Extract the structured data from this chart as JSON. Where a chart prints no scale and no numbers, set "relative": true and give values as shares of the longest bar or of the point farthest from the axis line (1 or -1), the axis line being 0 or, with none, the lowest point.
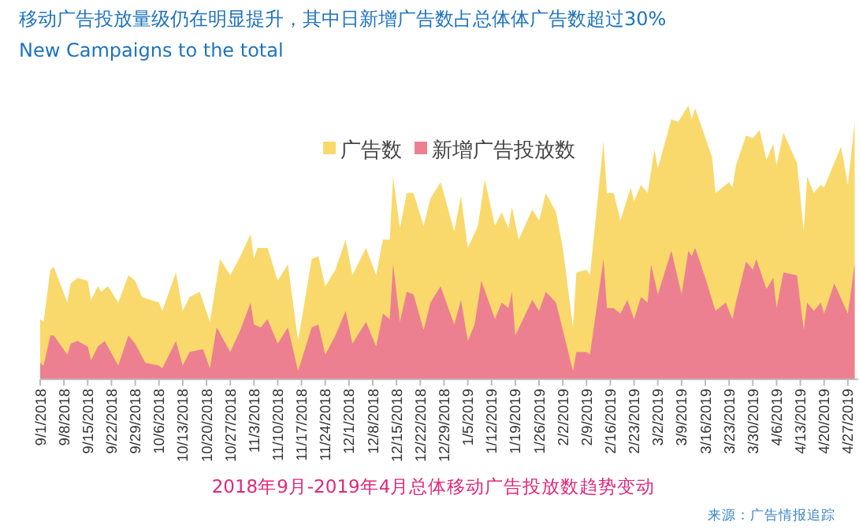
{
  "chart_data": {
    "type": "area",
    "title": "移动广告投放量级仍在明显提升，其中日新增广告数占总体体广告数超过30%",
    "subtitle": "New Campaigns to the total",
    "xlabel": "2018年9月-2019年4月总体移动广告投放数趋势变动",
    "annotations": [
      "来源：广告情报追踪"
    ],
    "relative": true,
    "legend": "top",
    "grid": false,
    "xlim": [
      "2018-09-01",
      "2019-04-30"
    ],
    "xticks": [
      {
        "value": "2018-09-01",
        "label": "9/1/2018"
      },
      {
        "value": "2018-09-08",
        "label": "9/8/2018"
      },
      {
        "value": "2018-09-15",
        "label": "9/15/2018"
      },
      {
        "value": "2018-09-22",
        "label": "9/22/2018"
      },
      {
        "value": "2018-09-29",
        "label": "9/29/2018"
      },
      {
        "value": "2018-10-06",
        "label": "10/6/2018"
      },
      {
        "value": "2018-10-13",
        "label": "10/13/2018"
      },
      {
        "value": "2018-10-20",
        "label": "10/20/2018"
      },
      {
        "value": "2018-10-27",
        "label": "10/27/2018"
      },
      {
        "value": "2018-11-03",
        "label": "11/3/2018"
      },
      {
        "value": "2018-11-10",
        "label": "11/10/2018"
      },
      {
        "value": "2018-11-17",
        "label": "11/17/2018"
      },
      {
        "value": "2018-11-24",
        "label": "11/24/2018"
      },
      {
        "value": "2018-12-01",
        "label": "12/1/2018"
      },
      {
        "value": "2018-12-08",
        "label": "12/8/2018"
      },
      {
        "value": "2018-12-15",
        "label": "12/15/2018"
      },
      {
        "value": "2018-12-22",
        "label": "12/22/2018"
      },
      {
        "value": "2018-12-29",
        "label": "12/29/2018"
      },
      {
        "value": "2019-01-05",
        "label": "1/5/2019"
      },
      {
        "value": "2019-01-12",
        "label": "1/12/2019"
      },
      {
        "value": "2019-01-19",
        "label": "1/19/2019"
      },
      {
        "value": "2019-01-26",
        "label": "1/26/2019"
      },
      {
        "value": "2019-02-02",
        "label": "2/2/2019"
      },
      {
        "value": "2019-02-09",
        "label": "2/9/2019"
      },
      {
        "value": "2019-02-16",
        "label": "2/16/2019"
      },
      {
        "value": "2019-02-23",
        "label": "2/23/2019"
      },
      {
        "value": "2019-03-02",
        "label": "3/2/2019"
      },
      {
        "value": "2019-03-09",
        "label": "3/9/2019"
      },
      {
        "value": "2019-03-16",
        "label": "3/16/2019"
      },
      {
        "value": "2019-03-23",
        "label": "3/23/2019"
      },
      {
        "value": "2019-03-30",
        "label": "3/30/2019"
      },
      {
        "value": "2019-04-06",
        "label": "4/6/2019"
      },
      {
        "value": "2019-04-13",
        "label": "4/13/2019"
      },
      {
        "value": "2019-04-20",
        "label": "4/20/2019"
      },
      {
        "value": "2019-04-27",
        "label": "4/27/2019"
      }
    ],
    "series": [
      {
        "name": "广告数",
        "color": "#f9d96b",
        "x": [
          "2018-09-01",
          "2018-09-02",
          "2018-09-04",
          "2018-09-05",
          "2018-09-09",
          "2018-09-10",
          "2018-09-12",
          "2018-09-15",
          "2018-09-16",
          "2018-09-18",
          "2018-09-19",
          "2018-09-21",
          "2018-09-24",
          "2018-09-27",
          "2018-09-29",
          "2018-10-01",
          "2018-10-06",
          "2018-10-07",
          "2018-10-11",
          "2018-10-13",
          "2018-10-15",
          "2018-10-18",
          "2018-10-21",
          "2018-10-24",
          "2018-10-27",
          "2018-10-30",
          "2018-11-02",
          "2018-11-03",
          "2018-11-04",
          "2018-11-07",
          "2018-11-10",
          "2018-11-13",
          "2018-11-16",
          "2018-11-20",
          "2018-11-22",
          "2018-11-24",
          "2018-11-27",
          "2018-11-30",
          "2018-12-02",
          "2018-12-06",
          "2018-12-09",
          "2018-12-11",
          "2018-12-13",
          "2018-12-14",
          "2018-12-16",
          "2018-12-18",
          "2018-12-20",
          "2018-12-23",
          "2018-12-25",
          "2018-12-28",
          "2019-01-01",
          "2019-01-03",
          "2019-01-05",
          "2019-01-08",
          "2019-01-10",
          "2019-01-13",
          "2019-01-15",
          "2019-01-17",
          "2019-01-18",
          "2019-01-20",
          "2019-01-24",
          "2019-01-26",
          "2019-01-28",
          "2019-01-31",
          "2019-02-02",
          "2019-02-05",
          "2019-02-06",
          "2019-02-09",
          "2019-02-10",
          "2019-02-14",
          "2019-02-15",
          "2019-02-17",
          "2019-02-19",
          "2019-02-22",
          "2019-02-23",
          "2019-02-25",
          "2019-02-27",
          "2019-03-01",
          "2019-03-02",
          "2019-03-06",
          "2019-03-08",
          "2019-03-11",
          "2019-03-12",
          "2019-03-13",
          "2019-03-18",
          "2019-03-19",
          "2019-03-23",
          "2019-03-24",
          "2019-03-25",
          "2019-03-28",
          "2019-03-30",
          "2019-04-01",
          "2019-04-03",
          "2019-04-05",
          "2019-04-06",
          "2019-04-08",
          "2019-04-12",
          "2019-04-14",
          "2019-04-15",
          "2019-04-17",
          "2019-04-19",
          "2019-04-20",
          "2019-04-25",
          "2019-04-27",
          "2019-04-29"
        ],
        "values": [
          0.22,
          0.21,
          0.4,
          0.41,
          0.28,
          0.35,
          0.37,
          0.36,
          0.29,
          0.34,
          0.32,
          0.34,
          0.28,
          0.38,
          0.36,
          0.3,
          0.28,
          0.25,
          0.39,
          0.25,
          0.3,
          0.32,
          0.21,
          0.44,
          0.38,
          0.45,
          0.53,
          0.44,
          0.48,
          0.48,
          0.36,
          0.42,
          0.14,
          0.44,
          0.45,
          0.34,
          0.4,
          0.51,
          0.38,
          0.48,
          0.38,
          0.51,
          0.51,
          0.74,
          0.55,
          0.68,
          0.68,
          0.56,
          0.66,
          0.72,
          0.54,
          0.67,
          0.48,
          0.56,
          0.73,
          0.56,
          0.61,
          0.55,
          0.63,
          0.51,
          0.62,
          0.58,
          0.68,
          0.61,
          0.48,
          0.19,
          0.39,
          0.4,
          0.38,
          0.87,
          0.68,
          0.68,
          0.58,
          0.7,
          0.65,
          0.71,
          0.68,
          0.84,
          0.77,
          0.95,
          0.94,
          1,
          0.95,
          0.99,
          0.81,
          0.68,
          0.72,
          0.7,
          0.78,
          0.89,
          0.88,
          0.91,
          0.8,
          0.86,
          0.78,
          0.9,
          0.79,
          0.54,
          0.74,
          0.68,
          0.71,
          0.7,
          0.85,
          0.71,
          0.94
        ]
      },
      {
        "name": "新增广告投放数",
        "color": "#ec8090",
        "x": [
          "2018-09-01",
          "2018-09-02",
          "2018-09-04",
          "2018-09-05",
          "2018-09-09",
          "2018-09-10",
          "2018-09-12",
          "2018-09-15",
          "2018-09-16",
          "2018-09-18",
          "2018-09-20",
          "2018-09-24",
          "2018-09-27",
          "2018-09-29",
          "2018-10-02",
          "2018-10-06",
          "2018-10-07",
          "2018-10-11",
          "2018-10-13",
          "2018-10-15",
          "2018-10-19",
          "2018-10-21",
          "2018-10-23",
          "2018-10-27",
          "2018-10-30",
          "2018-11-02",
          "2018-11-03",
          "2018-11-05",
          "2018-11-07",
          "2018-11-10",
          "2018-11-13",
          "2018-11-16",
          "2018-11-20",
          "2018-11-22",
          "2018-11-24",
          "2018-11-27",
          "2018-11-30",
          "2018-12-02",
          "2018-12-06",
          "2018-12-09",
          "2018-12-11",
          "2018-12-13",
          "2018-12-14",
          "2018-12-16",
          "2018-12-18",
          "2018-12-20",
          "2018-12-23",
          "2018-12-25",
          "2018-12-28",
          "2019-01-01",
          "2019-01-03",
          "2019-01-05",
          "2019-01-07",
          "2019-01-09",
          "2019-01-13",
          "2019-01-15",
          "2019-01-17",
          "2019-01-18",
          "2019-01-19",
          "2019-01-24",
          "2019-01-26",
          "2019-01-28",
          "2019-01-31",
          "2019-02-02",
          "2019-02-05",
          "2019-02-06",
          "2019-02-09",
          "2019-02-10",
          "2019-02-14",
          "2019-02-15",
          "2019-02-17",
          "2019-02-19",
          "2019-02-21",
          "2019-02-23",
          "2019-02-25",
          "2019-02-27",
          "2019-02-28",
          "2019-03-02",
          "2019-03-06",
          "2019-03-09",
          "2019-03-11",
          "2019-03-12",
          "2019-03-13",
          "2019-03-16",
          "2019-03-19",
          "2019-03-22",
          "2019-03-24",
          "2019-03-25",
          "2019-03-28",
          "2019-03-30",
          "2019-03-31",
          "2019-04-03",
          "2019-04-05",
          "2019-04-06",
          "2019-04-08",
          "2019-04-12",
          "2019-04-14",
          "2019-04-15",
          "2019-04-17",
          "2019-04-19",
          "2019-04-20",
          "2019-04-23",
          "2019-04-27",
          "2019-04-29"
        ],
        "values": [
          0.06,
          0.05,
          0.16,
          0.16,
          0.09,
          0.13,
          0.14,
          0.12,
          0.07,
          0.12,
          0.14,
          0.05,
          0.16,
          0.13,
          0.06,
          0.05,
          0.04,
          0.14,
          0.05,
          0.1,
          0.11,
          0.04,
          0.19,
          0.1,
          0.18,
          0.28,
          0.2,
          0.19,
          0.22,
          0.13,
          0.19,
          0.03,
          0.19,
          0.2,
          0.09,
          0.16,
          0.25,
          0.13,
          0.21,
          0.12,
          0.24,
          0.22,
          0.42,
          0.21,
          0.32,
          0.31,
          0.18,
          0.28,
          0.34,
          0.2,
          0.29,
          0.14,
          0.2,
          0.36,
          0.22,
          0.28,
          0.26,
          0.32,
          0.16,
          0.29,
          0.25,
          0.32,
          0.28,
          0.18,
          0.03,
          0.1,
          0.1,
          0.09,
          0.44,
          0.26,
          0.26,
          0.24,
          0.29,
          0.22,
          0.3,
          0.28,
          0.42,
          0.31,
          0.47,
          0.31,
          0.47,
          0.45,
          0.48,
          0.37,
          0.25,
          0.28,
          0.22,
          0.28,
          0.43,
          0.4,
          0.44,
          0.33,
          0.37,
          0.26,
          0.39,
          0.38,
          0.18,
          0.28,
          0.25,
          0.28,
          0.24,
          0.35,
          0.24,
          0.42
        ]
      }
    ]
  }
}
